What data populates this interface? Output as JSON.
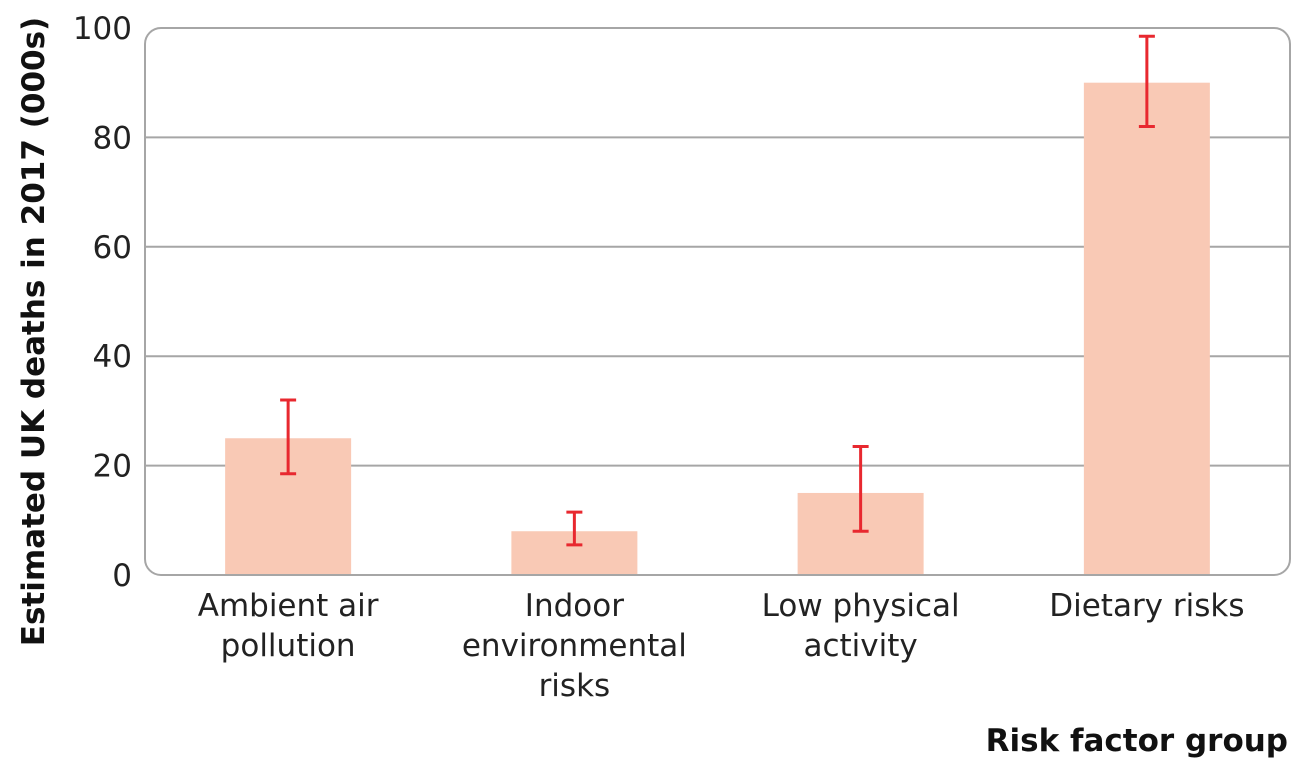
{
  "chart_data": {
    "type": "bar",
    "categories": [
      [
        "Ambient air",
        "pollution"
      ],
      [
        "Indoor",
        "environmental",
        "risks"
      ],
      [
        "Low physical",
        "activity"
      ],
      [
        "Dietary risks"
      ]
    ],
    "values": [
      25,
      8,
      15,
      90
    ],
    "error_low": [
      18.5,
      5.5,
      8,
      82
    ],
    "error_high": [
      32,
      11.5,
      23.5,
      98.5
    ],
    "title": "",
    "xlabel": "Risk factor group",
    "ylabel": "Estimated UK deaths in 2017 (000s)",
    "ylim": [
      0,
      100
    ],
    "yticks": [
      "0",
      "20",
      "40",
      "60",
      "80",
      "100"
    ],
    "grid": true,
    "colors": {
      "bar": "#f9c9b5",
      "error_bar": "#e8282f",
      "grid": "#a6a6a6",
      "frame": "#a6a6a6"
    }
  }
}
